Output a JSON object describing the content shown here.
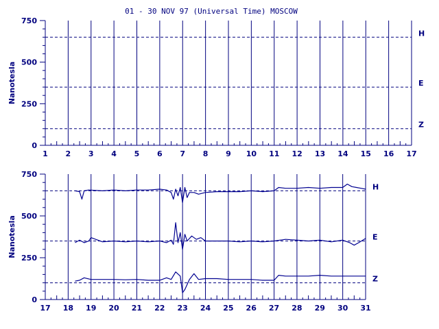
{
  "title": "01 - 30 NOV 97 (Universal Time) MOSCOW",
  "chart_data": [
    {
      "type": "line",
      "ylabel": "Nanotesla",
      "xlim": [
        1,
        17
      ],
      "ylim": [
        0,
        750
      ],
      "x_ticks": [
        1,
        2,
        3,
        4,
        5,
        6,
        7,
        8,
        9,
        10,
        11,
        12,
        13,
        14,
        15,
        16,
        17
      ],
      "y_ticks": [
        0,
        250,
        500,
        750
      ],
      "grid": "vertical lines at each day",
      "reference_lines": [
        {
          "label": "H",
          "value": 650
        },
        {
          "label": "E",
          "value": 350
        },
        {
          "label": "Z",
          "value": 100
        }
      ],
      "series": []
    },
    {
      "type": "line",
      "ylabel": "Nanotesla",
      "xlim": [
        17,
        31
      ],
      "ylim": [
        0,
        750
      ],
      "x_ticks": [
        17,
        18,
        19,
        20,
        21,
        22,
        23,
        24,
        25,
        26,
        27,
        28,
        29,
        30,
        31
      ],
      "y_ticks": [
        0,
        250,
        500,
        750
      ],
      "grid": "vertical lines at each day",
      "reference_lines": [
        {
          "label": "H",
          "value": 650
        },
        {
          "label": "E",
          "value": 350
        },
        {
          "label": "Z",
          "value": 100
        }
      ],
      "series": [
        {
          "name": "H",
          "x": [
            18.3,
            18.5,
            18.6,
            18.7,
            18.9,
            19.5,
            20.0,
            20.5,
            21.0,
            21.5,
            22.0,
            22.3,
            22.5,
            22.6,
            22.7,
            22.8,
            22.9,
            23.0,
            23.1,
            23.2,
            23.3,
            23.5,
            23.7,
            24.0,
            24.5,
            25.0,
            25.5,
            26.0,
            26.5,
            27.0,
            27.2,
            27.5,
            28.0,
            28.5,
            29.0,
            29.5,
            30.0,
            30.2,
            30.4,
            30.6,
            30.8,
            31.0
          ],
          "y": [
            650,
            645,
            600,
            650,
            655,
            650,
            655,
            650,
            655,
            655,
            660,
            655,
            640,
            600,
            660,
            620,
            670,
            580,
            670,
            610,
            640,
            640,
            630,
            640,
            645,
            645,
            645,
            650,
            645,
            650,
            670,
            665,
            665,
            670,
            665,
            670,
            670,
            690,
            675,
            670,
            665,
            660
          ]
        },
        {
          "name": "E",
          "x": [
            18.3,
            18.5,
            18.7,
            18.9,
            19.0,
            19.5,
            20.0,
            20.5,
            21.0,
            21.5,
            22.0,
            22.3,
            22.5,
            22.6,
            22.7,
            22.8,
            22.9,
            23.0,
            23.1,
            23.2,
            23.4,
            23.6,
            23.8,
            24.0,
            24.5,
            25.0,
            25.5,
            26.0,
            26.5,
            27.0,
            27.5,
            28.0,
            28.5,
            29.0,
            29.5,
            30.0,
            30.3,
            30.5,
            30.7,
            31.0
          ],
          "y": [
            340,
            355,
            340,
            350,
            370,
            345,
            350,
            345,
            350,
            345,
            350,
            340,
            355,
            330,
            460,
            340,
            400,
            300,
            390,
            350,
            380,
            360,
            370,
            350,
            350,
            350,
            345,
            350,
            345,
            350,
            360,
            355,
            350,
            355,
            345,
            355,
            340,
            325,
            340,
            365
          ]
        },
        {
          "name": "Z",
          "x": [
            18.3,
            18.5,
            18.7,
            19.0,
            19.5,
            20.0,
            20.5,
            21.0,
            21.5,
            22.0,
            22.3,
            22.5,
            22.7,
            22.9,
            23.0,
            23.1,
            23.3,
            23.5,
            23.7,
            24.0,
            24.5,
            25.0,
            25.5,
            26.0,
            26.5,
            27.0,
            27.2,
            27.5,
            28.0,
            28.5,
            29.0,
            29.5,
            30.0,
            30.5,
            31.0
          ],
          "y": [
            110,
            115,
            130,
            120,
            120,
            120,
            118,
            120,
            115,
            115,
            130,
            120,
            165,
            140,
            40,
            60,
            120,
            155,
            120,
            125,
            125,
            120,
            120,
            120,
            115,
            115,
            145,
            140,
            140,
            140,
            145,
            140,
            140,
            140,
            140
          ]
        }
      ]
    }
  ],
  "colors": {
    "ink": "#00007f",
    "trace": "#000090"
  }
}
